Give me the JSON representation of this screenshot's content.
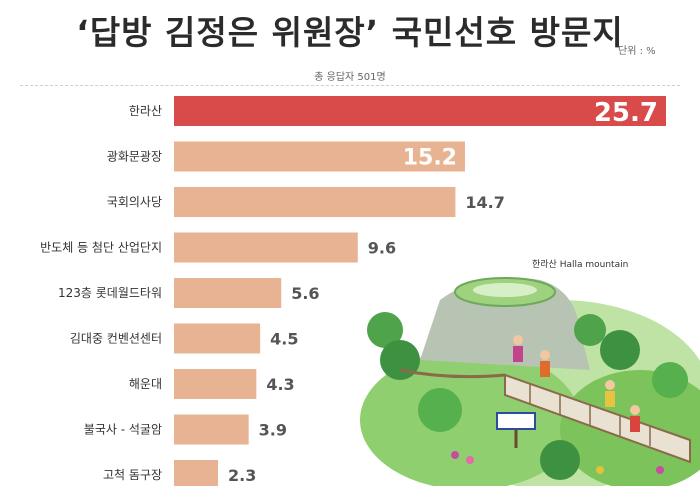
{
  "title": "‘답방 김정은 위원장’ 국민선호 방문지",
  "unit": "단위 : %",
  "subtitle": "총 응답자 501명",
  "illustration_caption": "한라산 Halla mountain",
  "colors": {
    "highlight": "#d94a4a",
    "bar": "#e8b392",
    "value_text": "#555555",
    "value_text_inside": "#ffffff"
  },
  "chart_data": {
    "type": "bar",
    "orientation": "horizontal",
    "categories": [
      "한라산",
      "광화문광장",
      "국회의사당",
      "반도체 등 첨단 산업단지",
      "123층 롯데월드타워",
      "김대중 컨벤션센터",
      "해운대",
      "불국사 - 석굴암",
      "고척 돔구장"
    ],
    "values": [
      25.7,
      15.2,
      14.7,
      9.6,
      5.6,
      4.5,
      4.3,
      3.9,
      2.3
    ],
    "xlim": [
      0,
      25.7
    ]
  }
}
